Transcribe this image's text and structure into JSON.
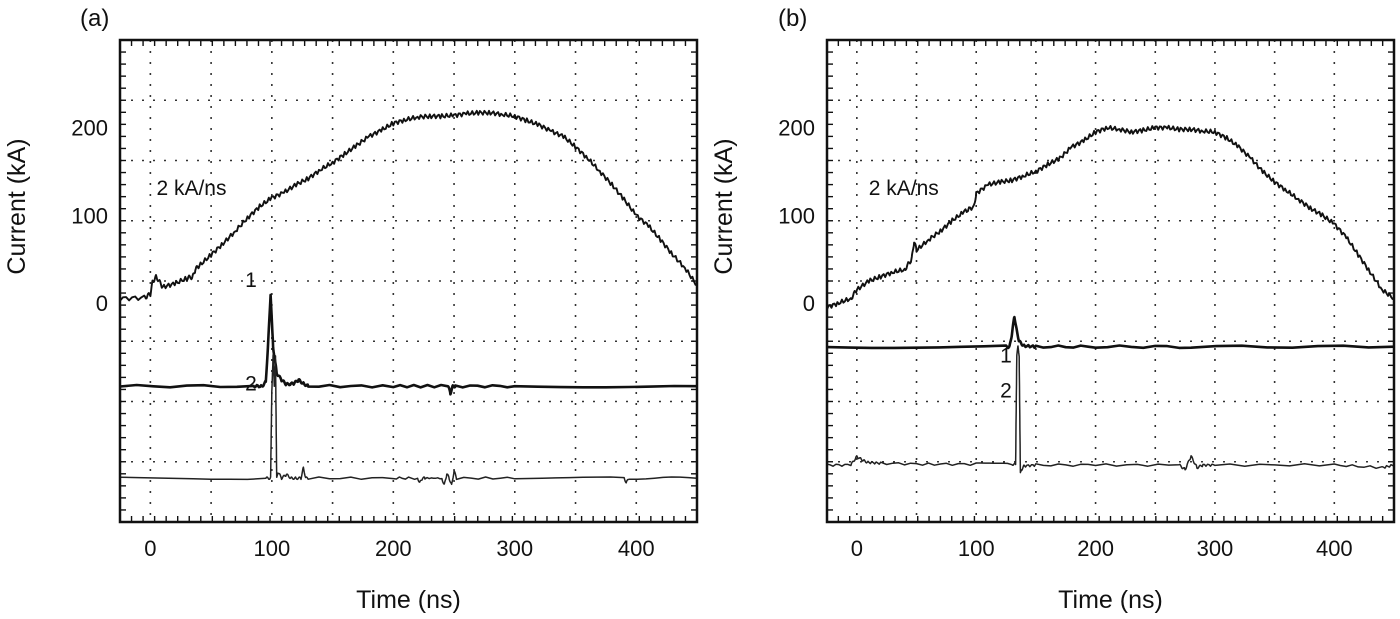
{
  "chart_data": [
    {
      "type": "line",
      "panel_label": "(a)",
      "xlabel": "Time (ns)",
      "ylabel": "Current (kA)",
      "xlim": [
        -25,
        450
      ],
      "ylim": [
        -250,
        300
      ],
      "x_ticks": [
        0,
        100,
        200,
        300,
        400
      ],
      "x_tick_labels": [
        "0",
        "100",
        "200",
        "300",
        "400"
      ],
      "y_tick_labels": [
        {
          "value": 0,
          "label": "0"
        },
        {
          "value": 100,
          "label": "100"
        },
        {
          "value": 200,
          "label": "200"
        }
      ],
      "grid": true,
      "annotations": [
        {
          "text": "2 kA/ns",
          "x": 5,
          "y": 123
        },
        {
          "text": "1",
          "x": 78,
          "y": 18
        },
        {
          "text": "2",
          "x": 78,
          "y": -100
        }
      ],
      "series": [
        {
          "name": "current",
          "x": [
            -25,
            -5,
            0,
            2,
            5,
            10,
            20,
            30,
            35,
            37,
            40,
            50,
            60,
            70,
            80,
            90,
            100,
            110,
            120,
            130,
            140,
            150,
            160,
            170,
            180,
            190,
            200,
            210,
            220,
            230,
            240,
            250,
            260,
            270,
            280,
            290,
            300,
            310,
            320,
            330,
            340,
            350,
            360,
            370,
            380,
            390,
            400,
            410,
            420,
            430,
            440,
            450
          ],
          "y": [
            5,
            6,
            10,
            25,
            30,
            18,
            22,
            28,
            30,
            38,
            42,
            55,
            68,
            82,
            97,
            110,
            120,
            126,
            135,
            142,
            152,
            160,
            170,
            180,
            190,
            197,
            205,
            209,
            212,
            213,
            213,
            214,
            216,
            217,
            217,
            215,
            213,
            208,
            203,
            196,
            190,
            178,
            165,
            150,
            135,
            118,
            100,
            88,
            72,
            55,
            40,
            20
          ]
        },
        {
          "name": "1",
          "x": [
            -25,
            85,
            92,
            95,
            97,
            99,
            101,
            104,
            108,
            112,
            118,
            122,
            126,
            130,
            200,
            245,
            247,
            249,
            251,
            300,
            450
          ],
          "y": [
            -95,
            -95,
            -95,
            -90,
            -45,
            10,
            -50,
            -80,
            -88,
            -93,
            -92,
            -88,
            -92,
            -95,
            -95,
            -95,
            -103,
            -95,
            -95,
            -95,
            -95
          ]
        },
        {
          "name": "2",
          "x": [
            -25,
            95,
            99,
            100,
            101,
            102,
            103,
            104,
            105,
            108,
            112,
            116,
            120,
            124,
            126,
            128,
            130,
            200,
            220,
            222,
            224,
            226,
            240,
            242,
            244,
            246,
            248,
            250,
            252,
            300,
            390,
            392,
            394,
            450
          ],
          "y": [
            -200,
            -200,
            -200,
            -100,
            -60,
            -95,
            -60,
            -200,
            -193,
            -200,
            -196,
            -200,
            -200,
            -200,
            -188,
            -200,
            -200,
            -200,
            -200,
            -205,
            -200,
            -200,
            -200,
            -208,
            -195,
            -200,
            -208,
            -192,
            -200,
            -200,
            -200,
            -205,
            -200,
            -200
          ]
        }
      ]
    },
    {
      "type": "line",
      "panel_label": "(b)",
      "xlabel": "Time (ns)",
      "ylabel": "Current (kA)",
      "xlim": [
        -25,
        450
      ],
      "ylim": [
        -250,
        300
      ],
      "x_ticks": [
        0,
        100,
        200,
        300,
        400
      ],
      "x_tick_labels": [
        "0",
        "100",
        "200",
        "300",
        "400"
      ],
      "y_tick_labels": [
        {
          "value": 0,
          "label": "0"
        },
        {
          "value": 100,
          "label": "100"
        },
        {
          "value": 200,
          "label": "200"
        }
      ],
      "grid": true,
      "annotations": [
        {
          "text": "2 kA/ns",
          "x": 10,
          "y": 123
        },
        {
          "text": "1",
          "x": 120,
          "y": -68
        },
        {
          "text": "2",
          "x": 120,
          "y": -108
        }
      ],
      "series": [
        {
          "name": "current",
          "x": [
            -25,
            -15,
            -5,
            0,
            10,
            20,
            30,
            40,
            46,
            48,
            50,
            60,
            70,
            80,
            90,
            98,
            100,
            110,
            120,
            130,
            140,
            150,
            160,
            170,
            180,
            190,
            200,
            210,
            220,
            230,
            240,
            250,
            260,
            270,
            280,
            290,
            300,
            310,
            320,
            330,
            340,
            350,
            360,
            370,
            380,
            390,
            400,
            410,
            420,
            430,
            440,
            450
          ],
          "y": [
            -5,
            0,
            5,
            15,
            25,
            30,
            35,
            38,
            50,
            70,
            60,
            72,
            82,
            94,
            104,
            110,
            125,
            135,
            138,
            140,
            145,
            150,
            158,
            165,
            178,
            185,
            195,
            200,
            198,
            195,
            197,
            200,
            200,
            198,
            198,
            196,
            195,
            188,
            178,
            165,
            150,
            138,
            128,
            118,
            108,
            100,
            90,
            75,
            55,
            35,
            15,
            5
          ]
        },
        {
          "name": "1",
          "x": [
            -25,
            125,
            128,
            130,
            132,
            134,
            136,
            140,
            150,
            200,
            280,
            450
          ],
          "y": [
            -50,
            -50,
            -50,
            -35,
            -15,
            -32,
            -44,
            -49,
            -50,
            -50,
            -50,
            -50
          ]
        },
        {
          "name": "2",
          "x": [
            -25,
            -5,
            0,
            5,
            10,
            20,
            60,
            100,
            130,
            133,
            134,
            135,
            136,
            137,
            138,
            140,
            150,
            200,
            270,
            275,
            280,
            285,
            290,
            300,
            400,
            440,
            450
          ],
          "y": [
            -185,
            -185,
            -175,
            -180,
            -182,
            -183,
            -184,
            -184,
            -184,
            -184,
            -60,
            -50,
            -60,
            -195,
            -190,
            -186,
            -185,
            -185,
            -185,
            -190,
            -175,
            -188,
            -185,
            -185,
            -185,
            -188,
            -185
          ]
        }
      ]
    }
  ]
}
